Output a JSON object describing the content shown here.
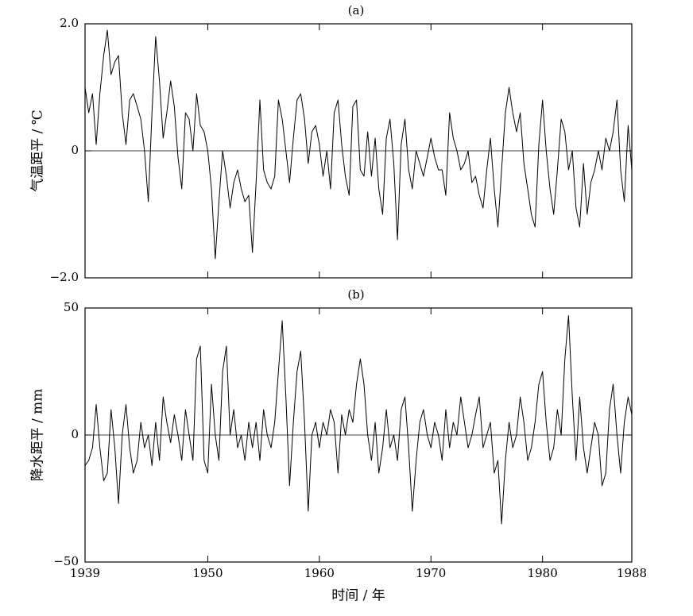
{
  "chart_data": [
    {
      "type": "line",
      "title": "(a)",
      "y_label": "气温距平 / ℃",
      "color": "#000000",
      "xtick_labels": false,
      "reference_line": 0,
      "xlim": [
        1939,
        1988
      ],
      "xticks": [
        1939,
        1950,
        1960,
        1970,
        1980,
        1988
      ],
      "ylim": [
        -2,
        2
      ],
      "yticks": [
        {
          "value": 2,
          "label": "2.0"
        },
        0,
        {
          "value": -2,
          "label": "−2.0"
        }
      ],
      "x": [
        1939,
        1939.33,
        1939.67,
        1940,
        1940.33,
        1940.67,
        1941,
        1941.33,
        1941.67,
        1942,
        1942.33,
        1942.67,
        1943,
        1943.33,
        1943.67,
        1944,
        1944.33,
        1944.67,
        1945,
        1945.33,
        1945.67,
        1946,
        1946.33,
        1946.67,
        1947,
        1947.33,
        1947.67,
        1948,
        1948.33,
        1948.67,
        1949,
        1949.33,
        1949.67,
        1950,
        1950.33,
        1950.67,
        1951,
        1951.33,
        1951.67,
        1952,
        1952.33,
        1952.67,
        1953,
        1953.33,
        1953.67,
        1954,
        1954.33,
        1954.67,
        1955,
        1955.33,
        1955.67,
        1956,
        1956.33,
        1956.67,
        1957,
        1957.33,
        1957.67,
        1958,
        1958.33,
        1958.67,
        1959,
        1959.33,
        1959.67,
        1960,
        1960.33,
        1960.67,
        1961,
        1961.33,
        1961.67,
        1962,
        1962.33,
        1962.67,
        1963,
        1963.33,
        1963.67,
        1964,
        1964.33,
        1964.67,
        1965,
        1965.33,
        1965.67,
        1966,
        1966.33,
        1966.67,
        1967,
        1967.33,
        1967.67,
        1968,
        1968.33,
        1968.67,
        1969,
        1969.33,
        1969.67,
        1970,
        1970.33,
        1970.67,
        1971,
        1971.33,
        1971.67,
        1972,
        1972.33,
        1972.67,
        1973,
        1973.33,
        1973.67,
        1974,
        1974.33,
        1974.67,
        1975,
        1975.33,
        1975.67,
        1976,
        1976.33,
        1976.67,
        1977,
        1977.33,
        1977.67,
        1978,
        1978.33,
        1978.67,
        1979,
        1979.33,
        1979.67,
        1980,
        1980.33,
        1980.67,
        1981,
        1981.33,
        1981.67,
        1982,
        1982.33,
        1982.67,
        1983,
        1983.33,
        1983.67,
        1984,
        1984.33,
        1984.67,
        1985,
        1985.33,
        1985.67,
        1986,
        1986.33,
        1986.67,
        1987,
        1987.33,
        1987.67,
        1988
      ],
      "values": [
        1.0,
        0.6,
        0.9,
        0.1,
        0.9,
        1.5,
        1.9,
        1.2,
        1.4,
        1.5,
        0.6,
        0.1,
        0.8,
        0.9,
        0.7,
        0.5,
        0.0,
        -0.8,
        0.6,
        1.8,
        1.1,
        0.2,
        0.6,
        1.1,
        0.7,
        -0.1,
        -0.6,
        0.6,
        0.5,
        0.0,
        0.9,
        0.4,
        0.3,
        0.0,
        -0.6,
        -1.7,
        -0.8,
        0.0,
        -0.4,
        -0.9,
        -0.5,
        -0.3,
        -0.6,
        -0.8,
        -0.7,
        -1.6,
        -0.5,
        0.8,
        -0.3,
        -0.5,
        -0.6,
        -0.4,
        0.8,
        0.5,
        0.0,
        -0.5,
        0.2,
        0.8,
        0.9,
        0.5,
        -0.2,
        0.3,
        0.4,
        0.1,
        -0.4,
        0.0,
        -0.6,
        0.6,
        0.8,
        0.1,
        -0.4,
        -0.7,
        0.7,
        0.8,
        -0.3,
        -0.4,
        0.3,
        -0.4,
        0.2,
        -0.6,
        -1.0,
        0.2,
        0.5,
        -0.2,
        -1.4,
        0.1,
        0.5,
        -0.3,
        -0.6,
        0.0,
        -0.2,
        -0.4,
        -0.1,
        0.2,
        -0.1,
        -0.3,
        -0.3,
        -0.7,
        0.6,
        0.2,
        0.0,
        -0.3,
        -0.2,
        0.0,
        -0.5,
        -0.4,
        -0.7,
        -0.9,
        -0.3,
        0.2,
        -0.6,
        -1.2,
        -0.3,
        0.6,
        1.0,
        0.6,
        0.3,
        0.6,
        -0.2,
        -0.6,
        -1.0,
        -1.2,
        0.1,
        0.8,
        0.0,
        -0.6,
        -1.0,
        -0.3,
        0.5,
        0.3,
        -0.3,
        0.0,
        -0.9,
        -1.2,
        -0.2,
        -1.0,
        -0.5,
        -0.3,
        0.0,
        -0.3,
        0.2,
        0.0,
        0.3,
        0.8,
        -0.3,
        -0.8,
        0.4,
        -0.3
      ]
    },
    {
      "type": "line",
      "title": "(b)",
      "y_label": "降水距平 / mm",
      "x_label": "时间 / 年",
      "color": "#000000",
      "xtick_labels": true,
      "reference_line": 0,
      "xlim": [
        1939,
        1988
      ],
      "xticks": [
        1939,
        1950,
        1960,
        1970,
        1980,
        1988
      ],
      "ylim": [
        -50,
        50
      ],
      "yticks": [
        50,
        0,
        {
          "value": -50,
          "label": "−50"
        }
      ],
      "x": [
        1939,
        1939.33,
        1939.67,
        1940,
        1940.33,
        1940.67,
        1941,
        1941.33,
        1941.67,
        1942,
        1942.33,
        1942.67,
        1943,
        1943.33,
        1943.67,
        1944,
        1944.33,
        1944.67,
        1945,
        1945.33,
        1945.67,
        1946,
        1946.33,
        1946.67,
        1947,
        1947.33,
        1947.67,
        1948,
        1948.33,
        1948.67,
        1949,
        1949.33,
        1949.67,
        1950,
        1950.33,
        1950.67,
        1951,
        1951.33,
        1951.67,
        1952,
        1952.33,
        1952.67,
        1953,
        1953.33,
        1953.67,
        1954,
        1954.33,
        1954.67,
        1955,
        1955.33,
        1955.67,
        1956,
        1956.33,
        1956.67,
        1957,
        1957.33,
        1957.67,
        1958,
        1958.33,
        1958.67,
        1959,
        1959.33,
        1959.67,
        1960,
        1960.33,
        1960.67,
        1961,
        1961.33,
        1961.67,
        1962,
        1962.33,
        1962.67,
        1963,
        1963.33,
        1963.67,
        1964,
        1964.33,
        1964.67,
        1965,
        1965.33,
        1965.67,
        1966,
        1966.33,
        1966.67,
        1967,
        1967.33,
        1967.67,
        1968,
        1968.33,
        1968.67,
        1969,
        1969.33,
        1969.67,
        1970,
        1970.33,
        1970.67,
        1971,
        1971.33,
        1971.67,
        1972,
        1972.33,
        1972.67,
        1973,
        1973.33,
        1973.67,
        1974,
        1974.33,
        1974.67,
        1975,
        1975.33,
        1975.67,
        1976,
        1976.33,
        1976.67,
        1977,
        1977.33,
        1977.67,
        1978,
        1978.33,
        1978.67,
        1979,
        1979.33,
        1979.67,
        1980,
        1980.33,
        1980.67,
        1981,
        1981.33,
        1981.67,
        1982,
        1982.33,
        1982.67,
        1983,
        1983.33,
        1983.67,
        1984,
        1984.33,
        1984.67,
        1985,
        1985.33,
        1985.67,
        1986,
        1986.33,
        1986.67,
        1987,
        1987.33,
        1987.67,
        1988
      ],
      "values": [
        -12,
        -10,
        -5,
        12,
        -5,
        -18,
        -15,
        10,
        -5,
        -27,
        0,
        12,
        -5,
        -15,
        -10,
        5,
        -5,
        0,
        -12,
        5,
        -10,
        15,
        5,
        -3,
        8,
        0,
        -10,
        10,
        0,
        -10,
        30,
        35,
        -10,
        -15,
        20,
        0,
        -10,
        25,
        35,
        0,
        10,
        -5,
        0,
        -10,
        5,
        -5,
        5,
        -10,
        10,
        0,
        -5,
        5,
        25,
        45,
        15,
        -20,
        5,
        25,
        33,
        5,
        -30,
        0,
        5,
        -5,
        5,
        0,
        10,
        5,
        -15,
        8,
        0,
        10,
        5,
        20,
        30,
        20,
        0,
        -10,
        5,
        -15,
        -5,
        10,
        -5,
        0,
        -10,
        10,
        15,
        -5,
        -30,
        -10,
        5,
        10,
        0,
        -5,
        5,
        0,
        -10,
        10,
        -5,
        5,
        0,
        15,
        5,
        -5,
        0,
        8,
        15,
        -5,
        0,
        5,
        -15,
        -10,
        -35,
        -10,
        5,
        -5,
        0,
        15,
        5,
        -10,
        -5,
        5,
        20,
        25,
        5,
        -10,
        -5,
        10,
        0,
        30,
        47,
        15,
        -10,
        15,
        -5,
        -15,
        -5,
        5,
        0,
        -20,
        -15,
        10,
        20,
        0,
        -15,
        5,
        15,
        8
      ]
    }
  ]
}
